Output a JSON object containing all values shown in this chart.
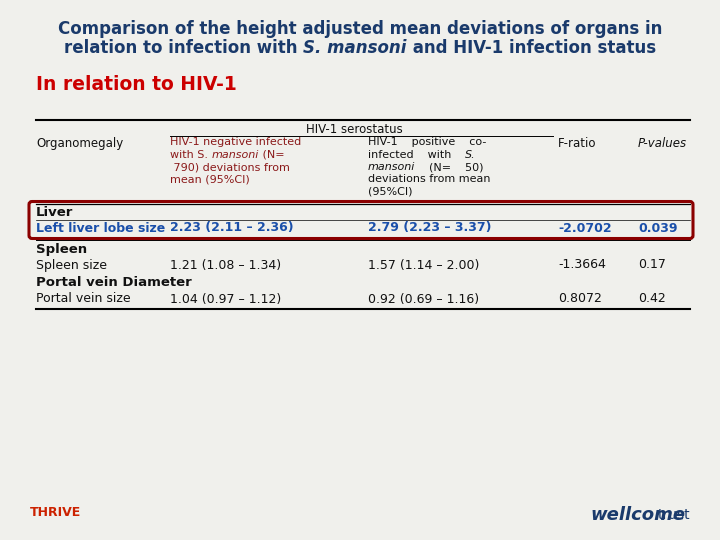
{
  "bg_color": "#f0f0ec",
  "title_color": "#1a3a6b",
  "subtitle_color": "#cc0000",
  "red_text_color": "#8b1a1a",
  "blue_text_color": "#1a4faa",
  "highlight_box_color": "#8b0000",
  "black": "#111111",
  "title_line1": "Comparison of the height adjusted mean deviations of organs in",
  "title_pre2": "relation to infection with ",
  "title_italic2": "S. mansoni",
  "title_post2": " and HIV-1 infection status",
  "subtitle": "In relation to HIV-1",
  "hiv_serostatus": "HIV-1 serostatus",
  "col0_label": "Organomegaly",
  "col1_lines": [
    "HIV-1 negative infected",
    "with S. mansoni (N=",
    " 790) deviations from",
    "mean (95%CI)"
  ],
  "col1_italic_word": "mansoni",
  "col2_lines": [
    "HIV-1    positive    co-",
    "infected    with    S.",
    "mansoni    (N=    50)",
    "deviations from mean",
    "(95%CI)"
  ],
  "col3_label": "F-ratio",
  "col4_label": "P-values",
  "liver_label": "Liver",
  "liver_row_label": "Left liver lobe size",
  "liver_col1": "2.23 (2.11 – 2.36)",
  "liver_col2": "2.79 (2.23 – 3.37)",
  "liver_col3": "-2.0702",
  "liver_col4": "0.039",
  "spleen_label": "Spleen",
  "spleen_row_label": "Spleen size",
  "spleen_col1": "1.21 (1.08 – 1.34)",
  "spleen_col2": "1.57 (1.14 – 2.00)",
  "spleen_col3": "-1.3664",
  "spleen_col4": "0.17",
  "portal_label": "Portal vein Diameter",
  "portal_row_label": "Portal vein size",
  "portal_col1": "1.04 (0.97 – 1.12)",
  "portal_col2": "0.92 (0.69 – 1.16)",
  "portal_col3": "0.8072",
  "portal_col4": "0.42"
}
